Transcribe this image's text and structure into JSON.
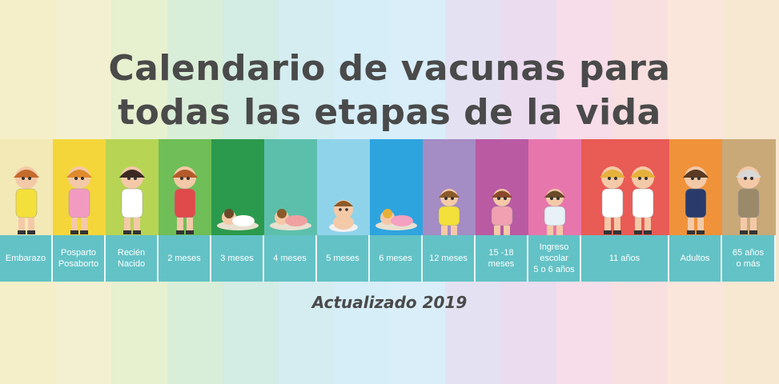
{
  "title_line1": "Calendario de vacunas para",
  "title_line2": "todas las etapas de la vida",
  "updated": "Actualizado 2019",
  "stages": [
    {
      "label": "Embarazo",
      "color": "#f3e9b6",
      "w": 66
    },
    {
      "label": "Posparto\nPosaborto",
      "color": "#f4d63a",
      "w": 66
    },
    {
      "label": "Recién\nNacido",
      "color": "#b7d455",
      "w": 66
    },
    {
      "label": "2 meses",
      "color": "#6fbe57",
      "w": 66
    },
    {
      "label": "3 meses",
      "color": "#2c9a4c",
      "w": 66
    },
    {
      "label": "4 meses",
      "color": "#5cbfac",
      "w": 66
    },
    {
      "label": "5 meses",
      "color": "#8fd3ea",
      "w": 66
    },
    {
      "label": "6 meses",
      "color": "#2ea4df",
      "w": 66
    },
    {
      "label": "12 meses",
      "color": "#a48cc4",
      "w": 66
    },
    {
      "label": "15 -18\nmeses",
      "color": "#b95aa3",
      "w": 66
    },
    {
      "label": "Ingreso\nescolar\n5 o 6 años",
      "color": "#e776ac",
      "w": 66
    },
    {
      "label": "11 años",
      "color": "#e95b55",
      "w": 110
    },
    {
      "label": "Adultos",
      "color": "#f0923a",
      "w": 66
    },
    {
      "label": "65 años\no más",
      "color": "#c9a978",
      "w": 67
    }
  ],
  "background_bands": [
    "#f4efc8",
    "#f2f0d0",
    "#e7f0cf",
    "#d9eed8",
    "#d3ece4",
    "#d5edf1",
    "#d6eef8",
    "#d9eef9",
    "#e4e2f2",
    "#ecdcef",
    "#f6dde9",
    "#f8dfe0",
    "#fbe6dc",
    "#f7e8d2"
  ]
}
